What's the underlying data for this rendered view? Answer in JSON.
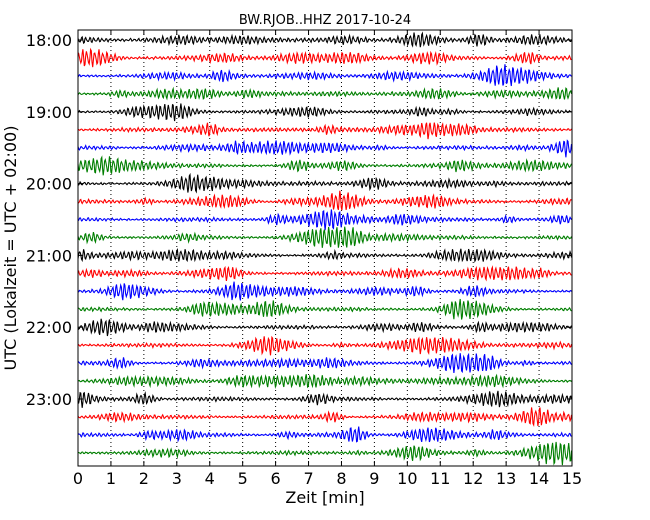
{
  "chart_data": {
    "type": "line",
    "title": "BW.RJOB..HHZ 2017-10-24",
    "xlabel": "Zeit  [min]",
    "ylabel": "UTC (Lokalzeit = UTC + 02:00)",
    "xlim": [
      0,
      15
    ],
    "x_ticks": [
      "0",
      "1",
      "2",
      "3",
      "4",
      "5",
      "6",
      "7",
      "8",
      "9",
      "10",
      "11",
      "12",
      "13",
      "14",
      "15"
    ],
    "y_ticks": [
      {
        "label": "18:00",
        "trace": 0
      },
      {
        "label": "19:00",
        "trace": 4
      },
      {
        "label": "20:00",
        "trace": 8
      },
      {
        "label": "21:00",
        "trace": 12
      },
      {
        "label": "22:00",
        "trace": 16
      },
      {
        "label": "23:00",
        "trace": 20
      }
    ],
    "grid": "vertical-dotted",
    "trace_colors": [
      "#000000",
      "#ff0000",
      "#0000ff",
      "#007f00"
    ],
    "trace_count": 24,
    "trace_interval_minutes": 15
  }
}
